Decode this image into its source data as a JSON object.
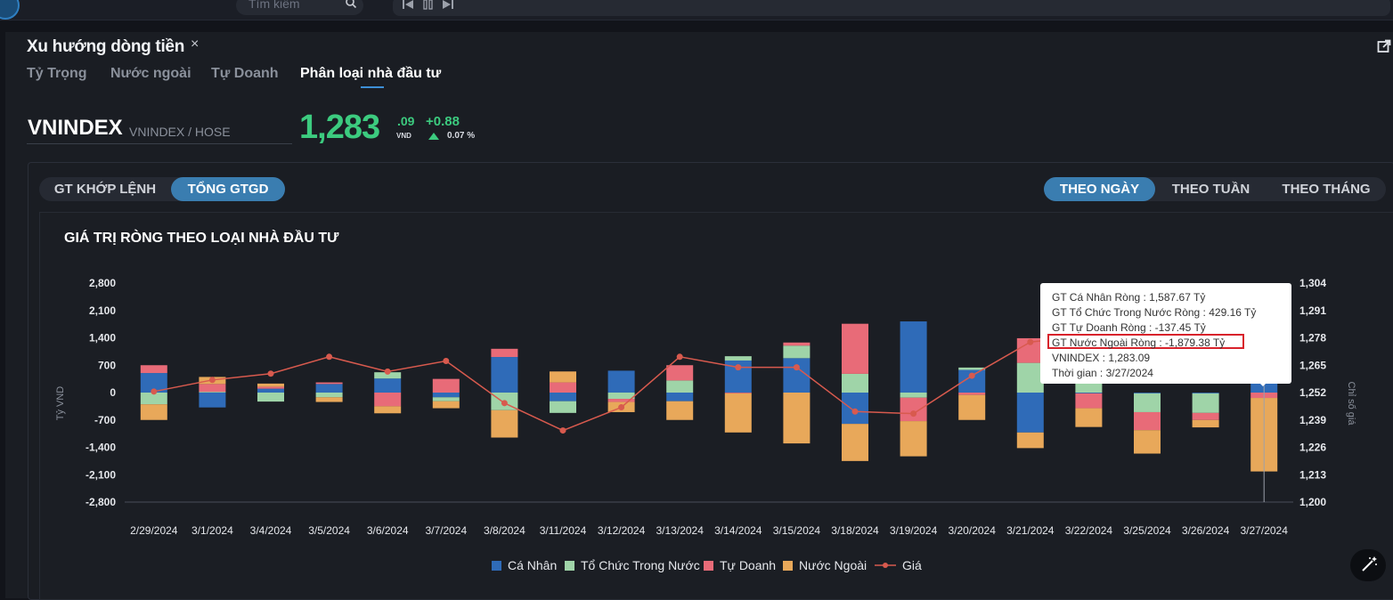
{
  "header": {
    "search_placeholder": "Tìm kiếm"
  },
  "tab": {
    "title": "Xu hướng dòng tiền",
    "close": "×"
  },
  "subtabs": [
    "Tỷ Trọng",
    "Nước ngoài",
    "Tự Doanh",
    "Phân loại nhà đầu tư"
  ],
  "symbol": {
    "ticker": "VNINDEX",
    "sub": "VNINDEX / HOSE",
    "price_main": "1,283",
    "price_dec": ".09",
    "currency": "VND",
    "change": "+0.88",
    "change_pct": "0.07 %"
  },
  "value_toggle": [
    "GT KHỚP LỆNH",
    "TỔNG GTGD"
  ],
  "period_toggle": [
    "THEO NGÀY",
    "THEO TUẦN",
    "THEO THÁNG"
  ],
  "colors": {
    "ca_nhan": "#2f6bb8",
    "to_chuc": "#9fd4a8",
    "tu_doanh": "#e86b78",
    "nuoc_ngoai": "#e8a85a",
    "gia": "#d85a4e",
    "positive": "#3ccb7f"
  },
  "tooltip": {
    "lines": [
      "GT Cá Nhân Ròng  : 1,587.67 Tỷ",
      "GT Tổ Chức Trong Nước Ròng : 429.16 Tỷ",
      "GT Tự Doanh Ròng : -137.45 Tỷ",
      "GT Nước Ngoài Ròng : -1,879.38 Tỷ",
      "VNINDEX : 1,283.09",
      "Thời gian : 3/27/2024"
    ]
  },
  "chart_data": {
    "type": "bar",
    "title": "GIÁ TRỊ RÒNG THEO LOẠI NHÀ ĐẦU TƯ",
    "ylabel": "Tỷ VND",
    "ylabel_right": "Chỉ số giá",
    "ylim": [
      -2800,
      2800
    ],
    "ylim_right": [
      1200,
      1304
    ],
    "yticks": [
      "2,800",
      "2,100",
      "1,400",
      "700",
      "0",
      "-700",
      "-1,400",
      "-2,100",
      "-2,800"
    ],
    "yticks_right": [
      "1,304",
      "1,291",
      "1,278",
      "1,265",
      "1,252",
      "1,239",
      "1,226",
      "1,213",
      "1,200"
    ],
    "legend_position": "bottom",
    "categories": [
      "2/29/2024",
      "3/1/2024",
      "3/4/2024",
      "3/5/2024",
      "3/6/2024",
      "3/7/2024",
      "3/8/2024",
      "3/11/2024",
      "3/12/2024",
      "3/13/2024",
      "3/14/2024",
      "3/15/2024",
      "3/18/2024",
      "3/19/2024",
      "3/20/2024",
      "3/21/2024",
      "3/22/2024",
      "3/25/2024",
      "3/26/2024",
      "3/27/2024"
    ],
    "series": [
      {
        "name": "Cá Nhân",
        "type": "bar",
        "values": [
          500,
          -380,
          100,
          220,
          360,
          -120,
          910,
          -220,
          560,
          -220,
          820,
          880,
          -800,
          1820,
          580,
          -1020,
          -20,
          -20,
          -20,
          1587.67
        ]
      },
      {
        "name": "Tổ Chức Trong Nước",
        "type": "bar",
        "values": [
          -300,
          20,
          -230,
          -120,
          160,
          -100,
          -450,
          -300,
          -160,
          310,
          110,
          320,
          480,
          -130,
          60,
          760,
          400,
          -480,
          -500,
          429.16
        ]
      },
      {
        "name": "Tự Doanh",
        "type": "bar",
        "values": [
          200,
          200,
          50,
          40,
          -350,
          350,
          210,
          260,
          -80,
          390,
          -20,
          80,
          1280,
          -600,
          -60,
          630,
          -380,
          -460,
          -180,
          -137.45
        ]
      },
      {
        "name": "Nước Ngoài",
        "type": "bar",
        "values": [
          -400,
          180,
          80,
          -120,
          -180,
          -180,
          -700,
          280,
          -260,
          -480,
          -1000,
          -1300,
          -950,
          -900,
          -640,
          -400,
          -480,
          -600,
          -190,
          -1879.38
        ]
      },
      {
        "name": "Giá",
        "type": "line",
        "values": [
          1252.5,
          1258,
          1261,
          1269,
          1262,
          1267,
          1247,
          1234,
          1245,
          1269,
          1264,
          1264,
          1243,
          1242,
          1260,
          1276,
          1279,
          1282,
          1283,
          1283.09
        ]
      }
    ]
  }
}
